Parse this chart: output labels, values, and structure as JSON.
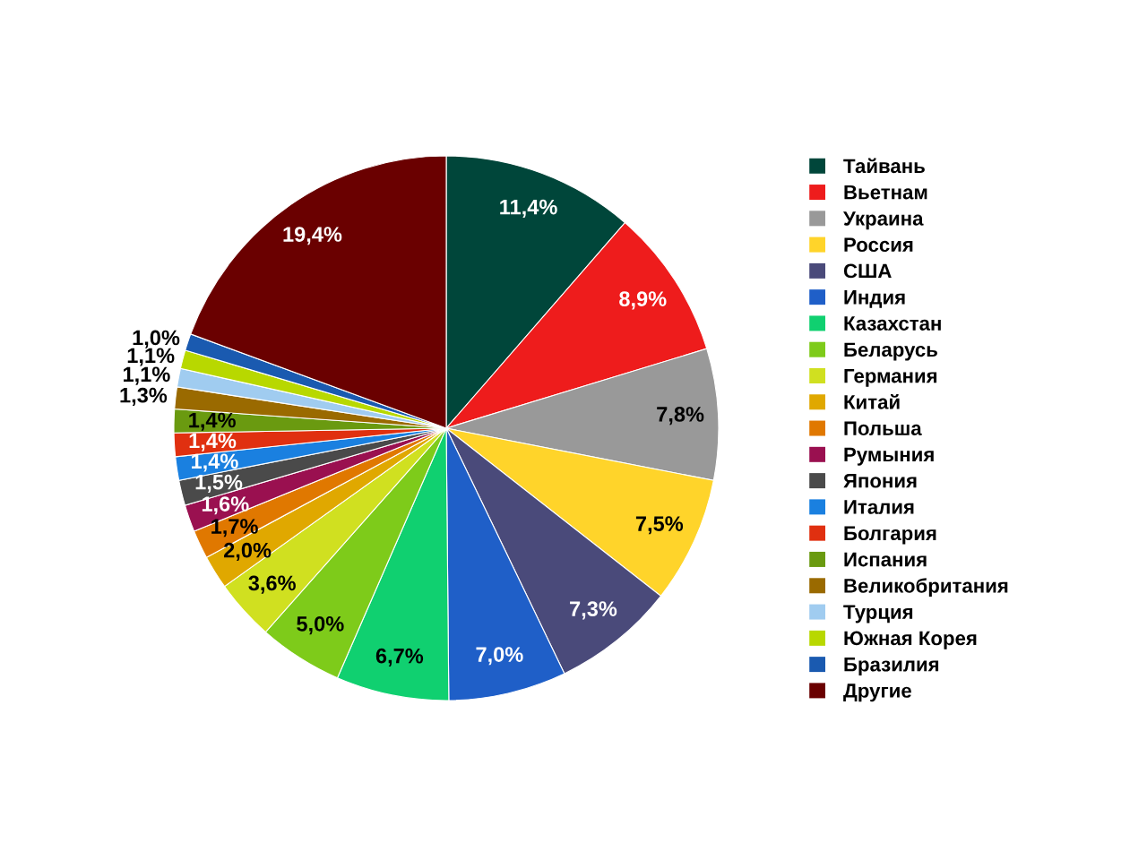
{
  "chart_data": {
    "type": "pie",
    "categories": [
      "Тайвань",
      "Вьетнам",
      "Украина",
      "Россия",
      "США",
      "Индия",
      "Казахстан",
      "Беларусь",
      "Германия",
      "Китай",
      "Польша",
      "Румыния",
      "Япония",
      "Италия",
      "Болгария",
      "Испания",
      "Великобритания",
      "Турция",
      "Южная Корея",
      "Бразилия",
      "Другие"
    ],
    "values": [
      11.4,
      8.9,
      7.8,
      7.5,
      7.3,
      7.0,
      6.7,
      5.0,
      3.6,
      2.0,
      1.7,
      1.6,
      1.5,
      1.4,
      1.4,
      1.4,
      1.3,
      1.1,
      1.1,
      1.0,
      19.4
    ],
    "colors": [
      "#00463a",
      "#ee1c1c",
      "#999999",
      "#ffd42a",
      "#4a4a7a",
      "#1f5fc8",
      "#10d070",
      "#7ecb1a",
      "#d0e020",
      "#e0a800",
      "#e07800",
      "#9a1050",
      "#4a4a4a",
      "#1a80e0",
      "#e03010",
      "#6a9a10",
      "#9a6a00",
      "#a0ccf0",
      "#b8d800",
      "#1a5ab0",
      "#6a0000"
    ],
    "value_labels": [
      "11,4%",
      "8,9%",
      "7,8%",
      "7,5%",
      "7,3%",
      "7,0%",
      "6,7%",
      "5,0%",
      "3,6%",
      "2,0%",
      "1,7%",
      "1,6%",
      "1,5%",
      "1,4%",
      "1,4%",
      "1,4%",
      "1,3%",
      "1,1%",
      "1,1%",
      "1,0%",
      "19,4%"
    ],
    "legend": "right"
  }
}
